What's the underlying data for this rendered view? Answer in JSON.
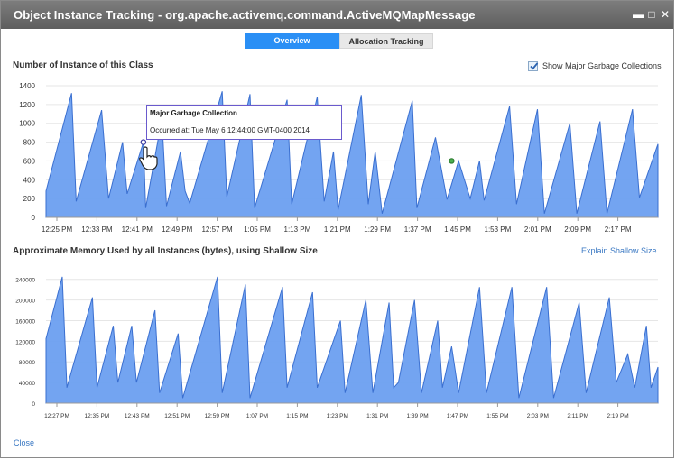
{
  "window": {
    "title": "Object Instance Tracking - org.apache.activemq.command.ActiveMQMapMessage",
    "controls": [
      "minimize-icon",
      "maximize-icon",
      "close-icon"
    ]
  },
  "tabs": [
    {
      "label": "Overview",
      "active": true
    },
    {
      "label": "Allocation Tracking",
      "active": false
    }
  ],
  "top_panel": {
    "title": "Number of Instance of this Class",
    "checkbox_label": "Show Major Garbage Collections",
    "checked": true
  },
  "tooltip": {
    "title": "Major Garbage Collection",
    "body": "Occurred at: Tue May 6 12:44:00 GMT-0400 2014"
  },
  "bottom_panel": {
    "title": "Approximate Memory Used by all Instances (bytes), using Shallow Size",
    "link": "Explain Shallow Size"
  },
  "footer": {
    "close_label": "Close"
  },
  "colors": {
    "accent": "#2a8ff5",
    "area_fill": "#6b9ff0",
    "titlebar": "#6b6b6b"
  },
  "chart_data": [
    {
      "type": "area",
      "title": "Number of Instance of this Class",
      "y_ticks": [
        "1400",
        "1200",
        "1000",
        "800",
        "600",
        "400",
        "200",
        "0"
      ],
      "y_range": [
        0,
        1400
      ],
      "x_ticks": [
        "12:25 PM",
        "12:33 PM",
        "12:41 PM",
        "12:49 PM",
        "12:57 PM",
        "1:05 PM",
        "1:13 PM",
        "1:21 PM",
        "1:29 PM",
        "1:37 PM",
        "1:45 PM",
        "1:53 PM",
        "2:01 PM",
        "2:09 PM",
        "2:17 PM"
      ],
      "x_range_minutes": [
        0,
        264
      ],
      "values": [
        [
          0,
          280
        ],
        [
          11,
          1320
        ],
        [
          13,
          170
        ],
        [
          24,
          1140
        ],
        [
          27,
          200
        ],
        [
          33,
          800
        ],
        [
          35,
          250
        ],
        [
          42,
          800
        ],
        [
          43,
          100
        ],
        [
          50,
          1050
        ],
        [
          52,
          120
        ],
        [
          58,
          700
        ],
        [
          60,
          280
        ],
        [
          62,
          150
        ],
        [
          76,
          1340
        ],
        [
          78,
          220
        ],
        [
          88,
          1310
        ],
        [
          90,
          100
        ],
        [
          104,
          1250
        ],
        [
          106,
          140
        ],
        [
          117,
          1280
        ],
        [
          120,
          170
        ],
        [
          124,
          700
        ],
        [
          126,
          80
        ],
        [
          136,
          1300
        ],
        [
          139,
          140
        ],
        [
          142,
          700
        ],
        [
          145,
          40
        ],
        [
          158,
          1240
        ],
        [
          160,
          100
        ],
        [
          168,
          850
        ],
        [
          173,
          190
        ],
        [
          178,
          600
        ],
        [
          183,
          200
        ],
        [
          187,
          600
        ],
        [
          189,
          180
        ],
        [
          200,
          1180
        ],
        [
          203,
          140
        ],
        [
          212,
          1150
        ],
        [
          215,
          40
        ],
        [
          226,
          1000
        ],
        [
          229,
          40
        ],
        [
          239,
          1020
        ],
        [
          242,
          40
        ],
        [
          253,
          1150
        ],
        [
          256,
          210
        ],
        [
          264,
          780
        ]
      ],
      "gc_markers": [
        [
          42,
          800
        ],
        [
          175,
          600
        ]
      ],
      "grid": true
    },
    {
      "type": "area",
      "title": "Approximate Memory Used by all Instances (bytes), using Shallow Size",
      "y_ticks": [
        "240000",
        "200000",
        "160000",
        "120000",
        "80000",
        "40000",
        "0"
      ],
      "y_range": [
        0,
        250000
      ],
      "x_ticks": [
        "12:27 PM",
        "12:35 PM",
        "12:43 PM",
        "12:51 PM",
        "12:59 PM",
        "1:07 PM",
        "1:15 PM",
        "1:23 PM",
        "1:31 PM",
        "1:39 PM",
        "1:47 PM",
        "1:55 PM",
        "2:03 PM",
        "2:11 PM",
        "2:19 PM"
      ],
      "x_range_minutes": [
        0,
        264
      ],
      "values": [
        [
          0,
          125000
        ],
        [
          7,
          245000
        ],
        [
          9,
          30000
        ],
        [
          20,
          205000
        ],
        [
          22,
          30000
        ],
        [
          29,
          150000
        ],
        [
          31,
          40000
        ],
        [
          37,
          150000
        ],
        [
          39,
          40000
        ],
        [
          47,
          180000
        ],
        [
          49,
          20000
        ],
        [
          57,
          135000
        ],
        [
          59,
          10000
        ],
        [
          74,
          245000
        ],
        [
          76,
          20000
        ],
        [
          86,
          230000
        ],
        [
          88,
          10000
        ],
        [
          102,
          225000
        ],
        [
          104,
          30000
        ],
        [
          115,
          215000
        ],
        [
          117,
          30000
        ],
        [
          127,
          160000
        ],
        [
          129,
          20000
        ],
        [
          138,
          200000
        ],
        [
          141,
          20000
        ],
        [
          148,
          195000
        ],
        [
          150,
          30000
        ],
        [
          152,
          40000
        ],
        [
          159,
          200000
        ],
        [
          162,
          20000
        ],
        [
          169,
          160000
        ],
        [
          171,
          30000
        ],
        [
          175,
          110000
        ],
        [
          178,
          20000
        ],
        [
          187,
          225000
        ],
        [
          190,
          20000
        ],
        [
          201,
          225000
        ],
        [
          204,
          10000
        ],
        [
          216,
          225000
        ],
        [
          219,
          10000
        ],
        [
          230,
          195000
        ],
        [
          233,
          20000
        ],
        [
          243,
          205000
        ],
        [
          246,
          40000
        ],
        [
          251,
          95000
        ],
        [
          254,
          30000
        ],
        [
          259,
          150000
        ],
        [
          261,
          30000
        ],
        [
          264,
          70000
        ]
      ],
      "grid": true
    }
  ]
}
